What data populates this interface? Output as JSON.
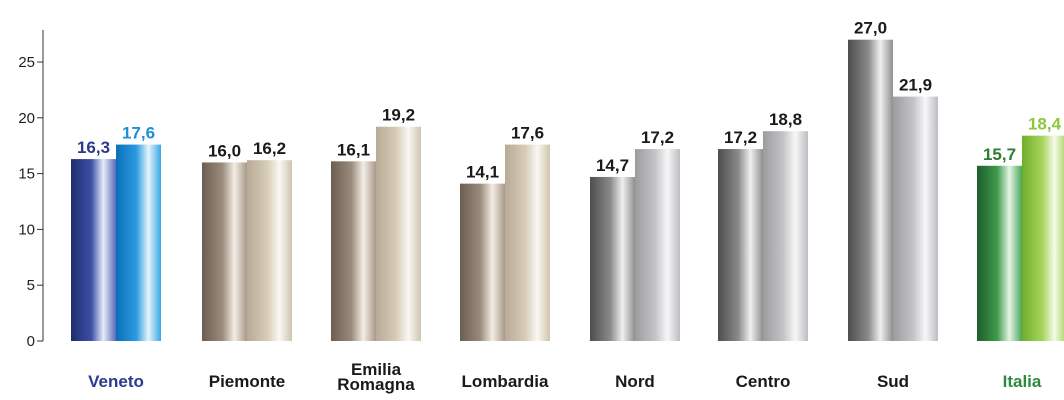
{
  "chart_data": {
    "type": "bar",
    "categories": [
      "Veneto",
      "Piemonte",
      "Emilia Romagna",
      "Lombardia",
      "Nord",
      "Centro",
      "Sud",
      "Italia"
    ],
    "series": [
      {
        "values": [
          16.3,
          16.0,
          16.1,
          14.1,
          14.7,
          17.2,
          27.0,
          15.7
        ]
      },
      {
        "values": [
          17.6,
          16.2,
          19.2,
          17.6,
          17.2,
          18.8,
          21.9,
          18.4
        ]
      }
    ],
    "value_labels": [
      [
        "16,3",
        "16,0",
        "16,1",
        "14,1",
        "14,7",
        "17,2",
        "27,0",
        "15,7"
      ],
      [
        "17,6",
        "16,2",
        "19,2",
        "17,6",
        "17,2",
        "18,8",
        "21,9",
        "18,4"
      ]
    ],
    "category_label_lines": [
      [
        "Veneto"
      ],
      [
        "Piemonte"
      ],
      [
        "Emilia",
        "Romagna"
      ],
      [
        "Lombardia"
      ],
      [
        "Nord"
      ],
      [
        "Centro"
      ],
      [
        "Sud"
      ],
      [
        "Italia"
      ]
    ],
    "ylim": [
      0,
      28
    ],
    "yticks": [
      0,
      5,
      10,
      15,
      20,
      25
    ],
    "ytick_labels": [
      "0",
      "5",
      "10",
      "15",
      "20",
      "25"
    ],
    "title": "",
    "xlabel": "",
    "ylabel": "",
    "grid": false,
    "colors": {
      "veneto_label": "#2b3990",
      "italia_label": "#2e8b3e",
      "default_label": "#1a1a1a",
      "veneto_value_1": "#2b3990",
      "veneto_value_2": "#1e90d8",
      "italia_value_1": "#2e7d32",
      "italia_value_2": "#8dc63f"
    }
  }
}
